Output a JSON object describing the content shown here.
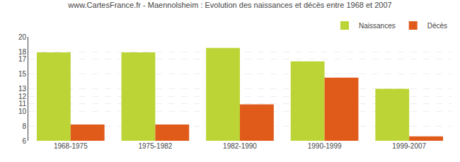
{
  "chart_data": {
    "type": "bar",
    "title": "www.CartesFrance.fr - Maennolsheim : Evolution des naissances et décès entre 1968 et 2007",
    "categories": [
      "1968-1975",
      "1975-1982",
      "1982-1990",
      "1990-1999",
      "1999-2007"
    ],
    "series": [
      {
        "name": "Naissances",
        "color": "#bcd435",
        "values": [
          17.9,
          17.9,
          18.5,
          16.7,
          13.0
        ]
      },
      {
        "name": "Décès",
        "color": "#e05a1a",
        "values": [
          8.2,
          8.2,
          10.9,
          14.5,
          6.6
        ]
      }
    ],
    "ylim": [
      6,
      20
    ],
    "yticks": [
      6,
      8,
      10,
      11,
      12,
      13,
      15,
      17,
      18,
      20
    ],
    "grid": true,
    "legend": "upper right"
  }
}
